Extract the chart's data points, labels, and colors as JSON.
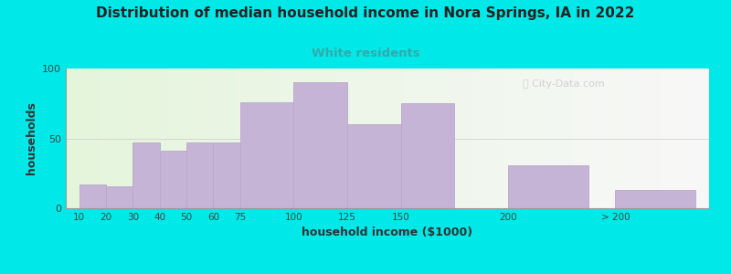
{
  "title": "Distribution of median household income in Nora Springs, IA in 2022",
  "subtitle": "White residents",
  "xlabel": "household income ($1000)",
  "ylabel": "households",
  "title_fontsize": 11,
  "subtitle_fontsize": 9.5,
  "subtitle_color": "#33aaaa",
  "title_color": "#222222",
  "bar_color": "#c5b4d5",
  "bar_edge_color": "#b8a8cc",
  "bg_outer": "#00e8e8",
  "ylim": [
    0,
    100
  ],
  "yticks": [
    0,
    50,
    100
  ],
  "categories": [
    "10",
    "20",
    "30",
    "40",
    "50",
    "60",
    "75",
    "100",
    "125",
    "150",
    "200",
    "> 200"
  ],
  "values": [
    17,
    16,
    47,
    41,
    47,
    47,
    76,
    90,
    60,
    75,
    31,
    13
  ],
  "bar_positions": [
    0,
    1,
    2,
    3,
    4,
    5,
    6,
    8,
    10,
    12,
    16,
    20
  ],
  "bar_widths": [
    1,
    1,
    1,
    1,
    1,
    1,
    2,
    2,
    2,
    2,
    3,
    3
  ],
  "xtick_positions": [
    0,
    1,
    2,
    3,
    4,
    5,
    6,
    8,
    10,
    12,
    16,
    20
  ],
  "bg_left_color": "#e5f5dc",
  "bg_right_color": "#f8f8f8"
}
